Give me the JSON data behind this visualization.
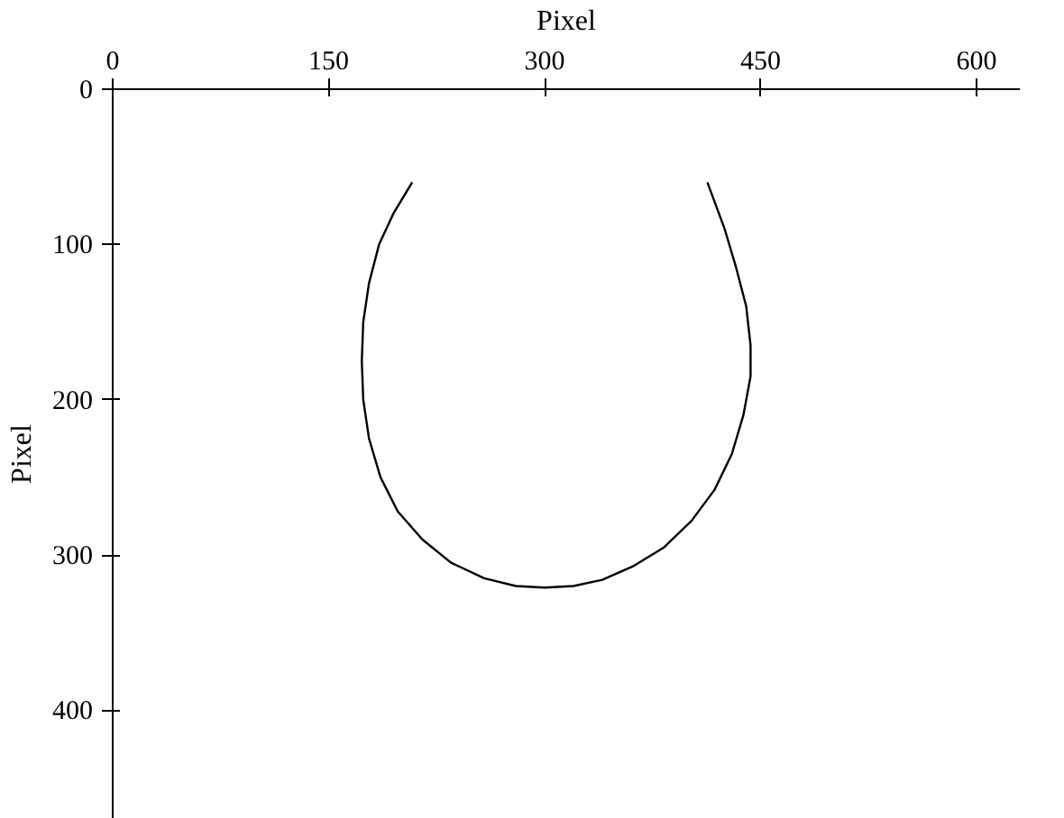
{
  "chart_data": {
    "type": "line",
    "xlabel": "Pixel",
    "ylabel": "Pixel",
    "xlim": [
      0,
      630
    ],
    "ylim": [
      470,
      0
    ],
    "xticks": [
      0,
      150,
      300,
      450,
      600
    ],
    "yticks": [
      0,
      100,
      200,
      300,
      400
    ],
    "grid": false,
    "series": [
      {
        "color": "#000000",
        "x": [
          208,
          195,
          185,
          178,
          174,
          173,
          174,
          178,
          186,
          198,
          215,
          235,
          258,
          280,
          300,
          320,
          340,
          362,
          383,
          402,
          418,
          430,
          438,
          443,
          443,
          440,
          433,
          425,
          413
        ],
        "values": [
          60,
          80,
          100,
          125,
          150,
          175,
          200,
          225,
          250,
          272,
          290,
          305,
          315,
          320,
          321,
          320,
          316,
          307,
          295,
          278,
          258,
          235,
          210,
          185,
          165,
          140,
          115,
          90,
          60
        ]
      }
    ]
  }
}
